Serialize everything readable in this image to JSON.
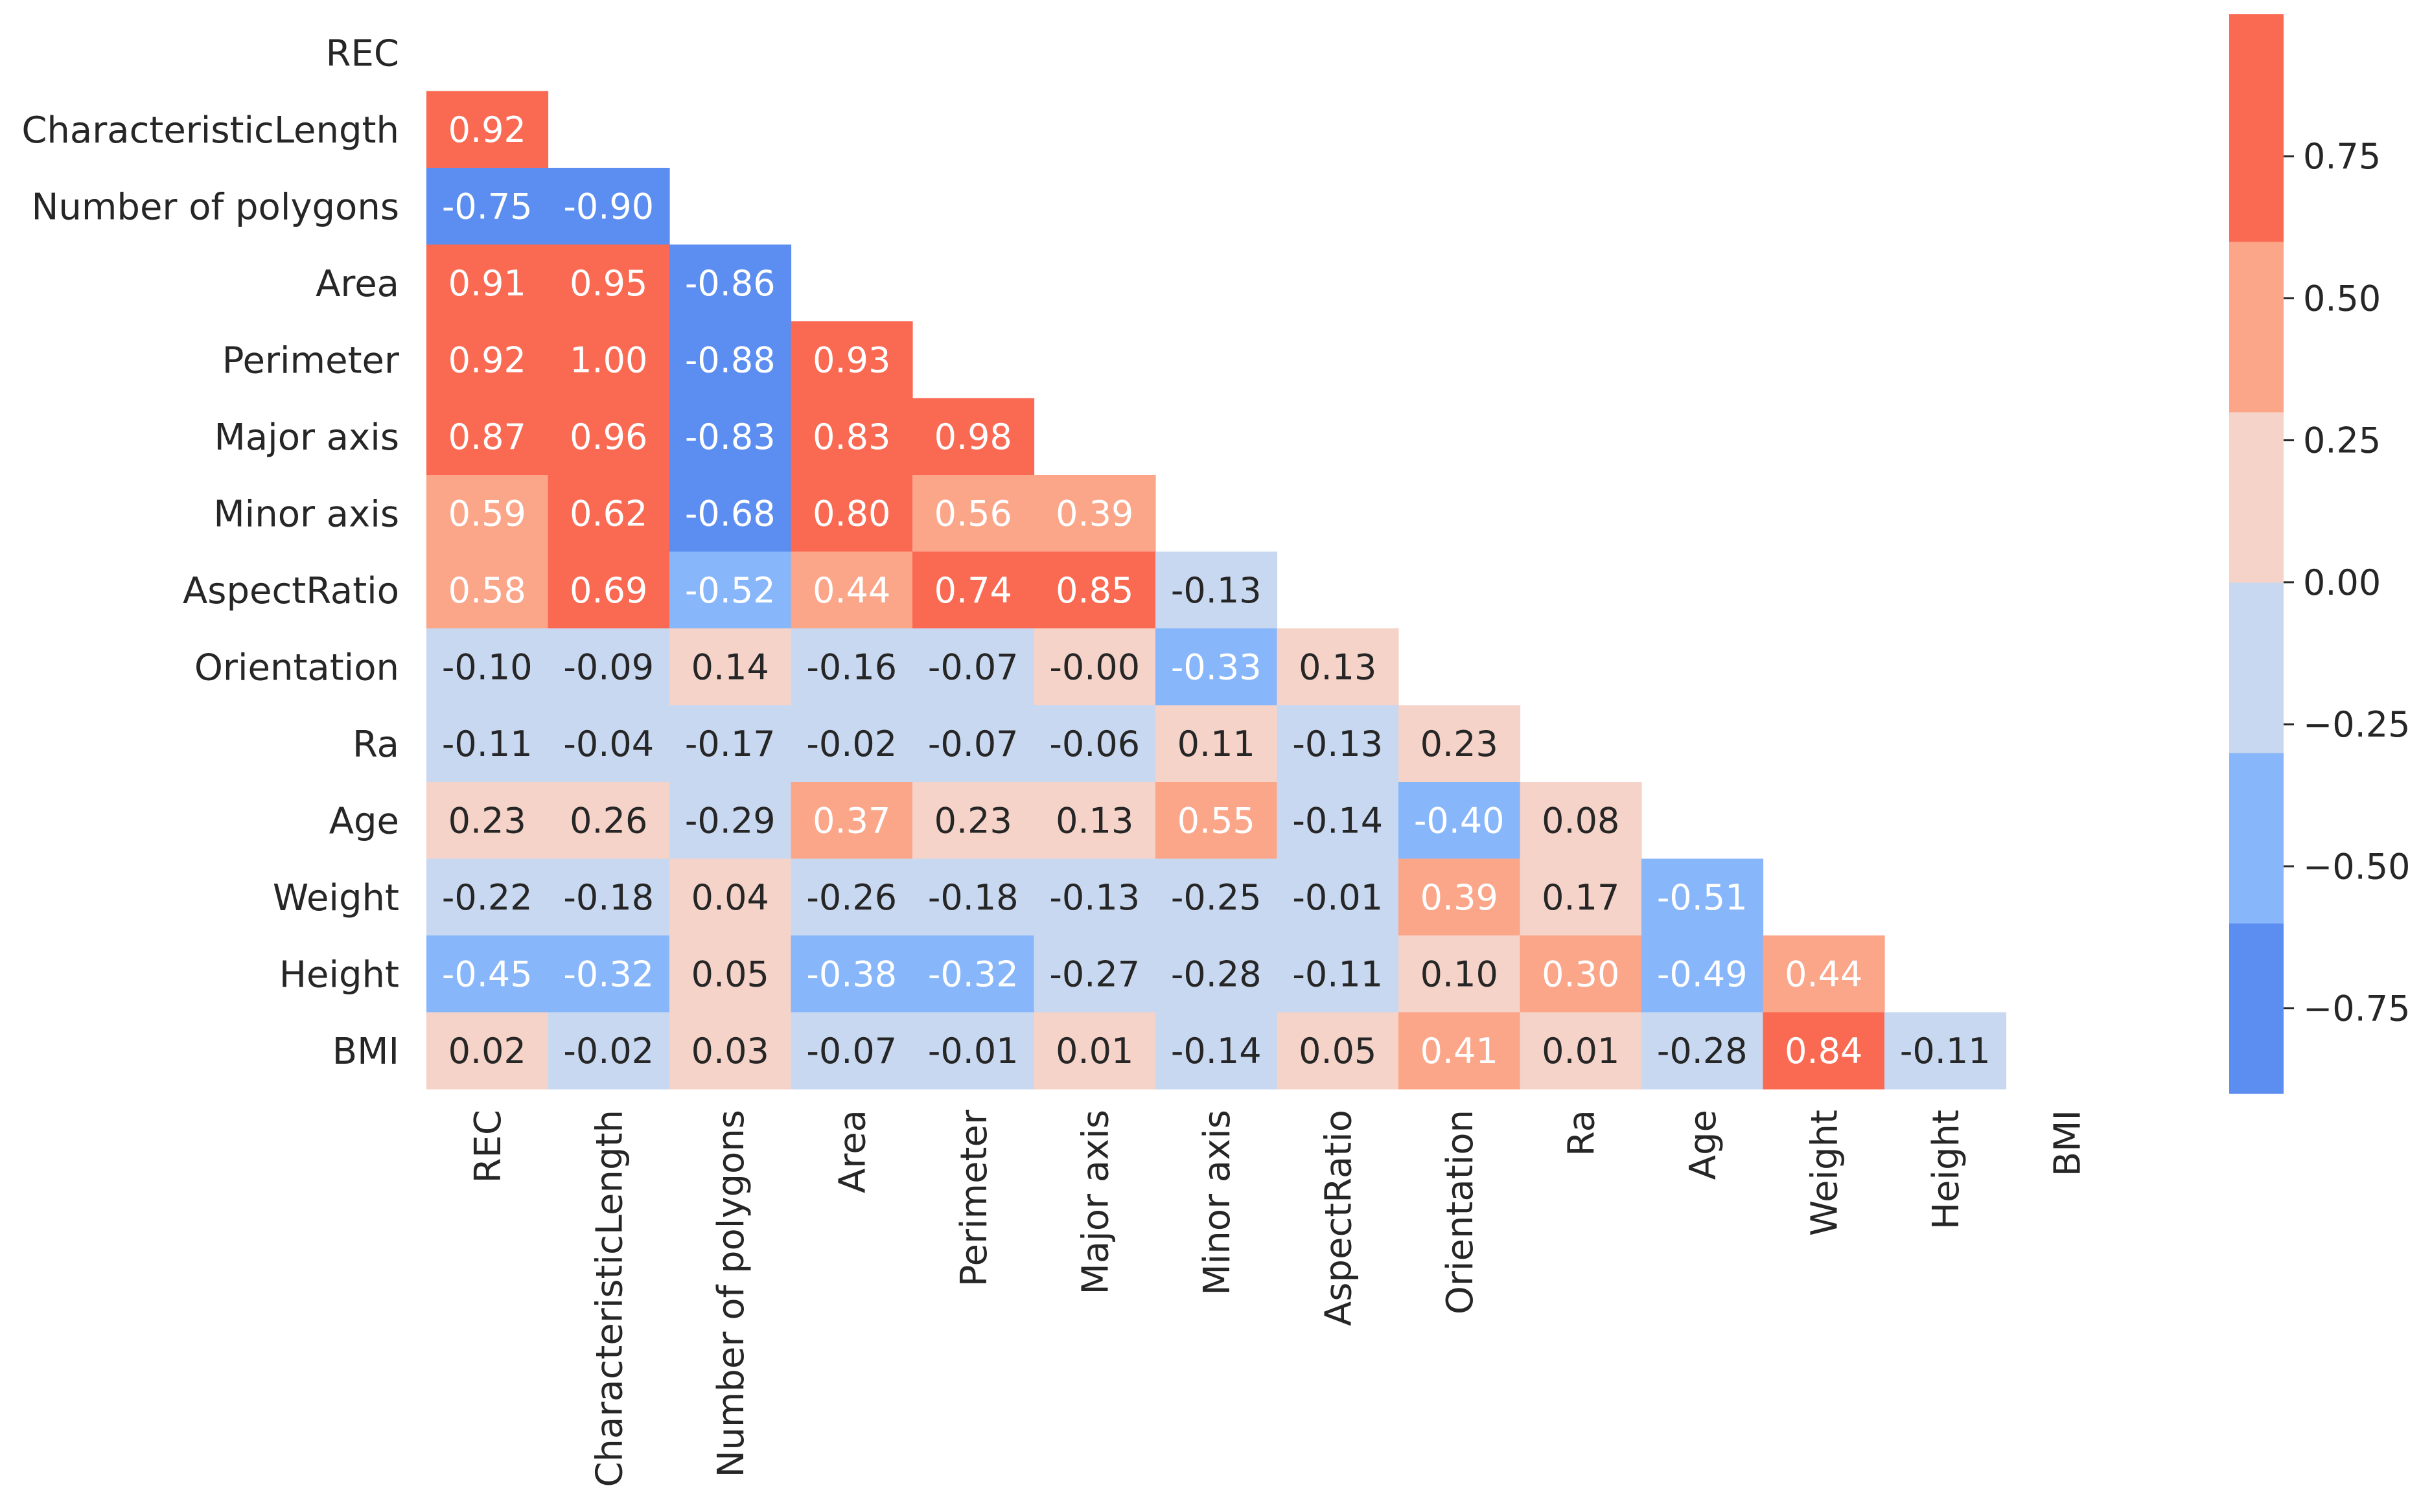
{
  "chart_data": {
    "type": "heatmap",
    "title": "",
    "variables": [
      "REC",
      "CharacteristicLength",
      "Number of polygons",
      "Area",
      "Perimeter",
      "Major axis",
      "Minor axis",
      "AspectRatio",
      "Orientation",
      "Ra",
      "Age",
      "Weight",
      "Height",
      "BMI"
    ],
    "mask": "upper-triangle-including-diagonal",
    "rows": [
      {
        "label": "REC",
        "values": []
      },
      {
        "label": "CharacteristicLength",
        "values": [
          "0.92"
        ]
      },
      {
        "label": "Number of polygons",
        "values": [
          "-0.75",
          "-0.90"
        ]
      },
      {
        "label": "Area",
        "values": [
          "0.91",
          "0.95",
          "-0.86"
        ]
      },
      {
        "label": "Perimeter",
        "values": [
          "0.92",
          "1.00",
          "-0.88",
          "0.93"
        ]
      },
      {
        "label": "Major axis",
        "values": [
          "0.87",
          "0.96",
          "-0.83",
          "0.83",
          "0.98"
        ]
      },
      {
        "label": "Minor axis",
        "values": [
          "0.59",
          "0.62",
          "-0.68",
          "0.80",
          "0.56",
          "0.39"
        ]
      },
      {
        "label": "AspectRatio",
        "values": [
          "0.58",
          "0.69",
          "-0.52",
          "0.44",
          "0.74",
          "0.85",
          "-0.13"
        ]
      },
      {
        "label": "Orientation",
        "values": [
          "-0.10",
          "-0.09",
          "0.14",
          "-0.16",
          "-0.07",
          "-0.00",
          "-0.33",
          "0.13"
        ]
      },
      {
        "label": "Ra",
        "values": [
          "-0.11",
          "-0.04",
          "-0.17",
          "-0.02",
          "-0.07",
          "-0.06",
          "0.11",
          "-0.13",
          "0.23"
        ]
      },
      {
        "label": "Age",
        "values": [
          "0.23",
          "0.26",
          "-0.29",
          "0.37",
          "0.23",
          "0.13",
          "0.55",
          "-0.14",
          "-0.40",
          "0.08"
        ]
      },
      {
        "label": "Weight",
        "values": [
          "-0.22",
          "-0.18",
          "0.04",
          "-0.26",
          "-0.18",
          "-0.13",
          "-0.25",
          "-0.01",
          "0.39",
          "0.17",
          "-0.51"
        ]
      },
      {
        "label": "Height",
        "values": [
          "-0.45",
          "-0.32",
          "0.05",
          "-0.38",
          "-0.32",
          "-0.27",
          "-0.28",
          "-0.11",
          "0.10",
          "0.30",
          "-0.49",
          "0.44"
        ]
      },
      {
        "label": "BMI",
        "values": [
          "0.02",
          "-0.02",
          "0.03",
          "-0.07",
          "-0.01",
          "0.01",
          "-0.14",
          "0.05",
          "0.41",
          "0.01",
          "-0.28",
          "0.84",
          "-0.11"
        ]
      }
    ],
    "colorbar": {
      "range": [
        -0.9,
        1.0
      ],
      "bins": [
        {
          "from": -1.0,
          "to": -0.6,
          "color": "#5b8ef0"
        },
        {
          "from": -0.6,
          "to": -0.3,
          "color": "#87b6fa"
        },
        {
          "from": -0.3,
          "to": 0.0,
          "color": "#c8d8f0"
        },
        {
          "from": 0.0,
          "to": 0.3,
          "color": "#f5d3c8"
        },
        {
          "from": 0.3,
          "to": 0.6,
          "color": "#fba589"
        },
        {
          "from": 0.6,
          "to": 1.0,
          "color": "#fa6a53"
        }
      ],
      "ticks": [
        {
          "value": 0.75,
          "label": "0.75"
        },
        {
          "value": 0.5,
          "label": "0.50"
        },
        {
          "value": 0.25,
          "label": "0.25"
        },
        {
          "value": 0.0,
          "label": "0.00"
        },
        {
          "value": -0.25,
          "label": "−0.25"
        },
        {
          "value": -0.5,
          "label": "−0.50"
        },
        {
          "value": -0.75,
          "label": "−0.75"
        }
      ]
    },
    "text_colors": {
      "on_strong": "#ffffff",
      "on_light": "#262626"
    }
  }
}
